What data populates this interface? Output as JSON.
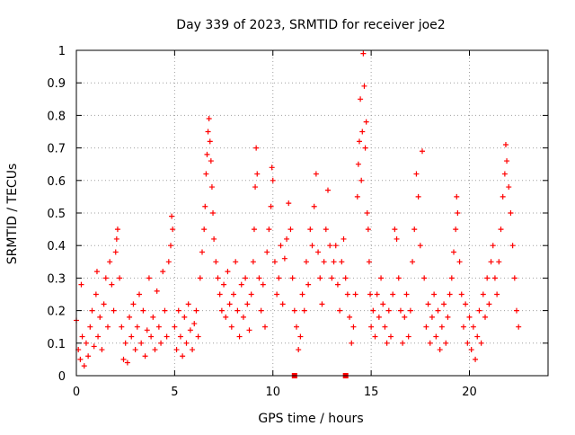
{
  "chart_data": {
    "type": "scatter",
    "title": "Day 339 of 2023, SRMTID for receiver joe2",
    "xlabel": "GPS time / hours",
    "ylabel": "SRMTID / TECUs",
    "xlim": [
      0,
      24
    ],
    "ylim": [
      0,
      1
    ],
    "xticks": [
      0,
      5,
      10,
      15,
      20
    ],
    "yticks": [
      0,
      0.1,
      0.2,
      0.3,
      0.4,
      0.5,
      0.6,
      0.7,
      0.8,
      0.9,
      1
    ],
    "grid": true,
    "marker": "+",
    "color": "#ff0000",
    "series": [
      {
        "name": "SRMTID",
        "values": [
          [
            0.0,
            0.17
          ],
          [
            0.1,
            0.08
          ],
          [
            0.2,
            0.05
          ],
          [
            0.25,
            0.28
          ],
          [
            0.3,
            0.12
          ],
          [
            0.4,
            0.03
          ],
          [
            0.5,
            0.1
          ],
          [
            0.6,
            0.06
          ],
          [
            0.7,
            0.15
          ],
          [
            0.8,
            0.2
          ],
          [
            0.9,
            0.09
          ],
          [
            1.0,
            0.25
          ],
          [
            1.05,
            0.32
          ],
          [
            1.1,
            0.12
          ],
          [
            1.2,
            0.18
          ],
          [
            1.3,
            0.08
          ],
          [
            1.4,
            0.22
          ],
          [
            1.5,
            0.3
          ],
          [
            1.6,
            0.15
          ],
          [
            1.7,
            0.35
          ],
          [
            1.8,
            0.28
          ],
          [
            1.9,
            0.2
          ],
          [
            2.0,
            0.38
          ],
          [
            2.05,
            0.42
          ],
          [
            2.1,
            0.45
          ],
          [
            2.2,
            0.3
          ],
          [
            2.3,
            0.15
          ],
          [
            2.4,
            0.05
          ],
          [
            2.5,
            0.1
          ],
          [
            2.6,
            0.04
          ],
          [
            2.7,
            0.18
          ],
          [
            2.8,
            0.12
          ],
          [
            2.9,
            0.22
          ],
          [
            3.0,
            0.08
          ],
          [
            3.1,
            0.15
          ],
          [
            3.2,
            0.25
          ],
          [
            3.3,
            0.1
          ],
          [
            3.4,
            0.2
          ],
          [
            3.5,
            0.06
          ],
          [
            3.6,
            0.14
          ],
          [
            3.7,
            0.3
          ],
          [
            3.8,
            0.12
          ],
          [
            3.9,
            0.18
          ],
          [
            4.0,
            0.08
          ],
          [
            4.1,
            0.26
          ],
          [
            4.2,
            0.15
          ],
          [
            4.3,
            0.1
          ],
          [
            4.4,
            0.32
          ],
          [
            4.5,
            0.2
          ],
          [
            4.6,
            0.12
          ],
          [
            4.7,
            0.35
          ],
          [
            4.8,
            0.4
          ],
          [
            4.85,
            0.49
          ],
          [
            4.9,
            0.45
          ],
          [
            5.0,
            0.15
          ],
          [
            5.1,
            0.08
          ],
          [
            5.2,
            0.2
          ],
          [
            5.3,
            0.12
          ],
          [
            5.4,
            0.06
          ],
          [
            5.5,
            0.18
          ],
          [
            5.6,
            0.1
          ],
          [
            5.7,
            0.22
          ],
          [
            5.8,
            0.14
          ],
          [
            5.9,
            0.08
          ],
          [
            6.0,
            0.16
          ],
          [
            6.1,
            0.2
          ],
          [
            6.2,
            0.12
          ],
          [
            6.3,
            0.3
          ],
          [
            6.4,
            0.38
          ],
          [
            6.5,
            0.45
          ],
          [
            6.55,
            0.52
          ],
          [
            6.6,
            0.62
          ],
          [
            6.65,
            0.68
          ],
          [
            6.7,
            0.75
          ],
          [
            6.75,
            0.79
          ],
          [
            6.8,
            0.72
          ],
          [
            6.85,
            0.66
          ],
          [
            6.9,
            0.58
          ],
          [
            6.95,
            0.5
          ],
          [
            7.0,
            0.42
          ],
          [
            7.1,
            0.35
          ],
          [
            7.2,
            0.3
          ],
          [
            7.3,
            0.25
          ],
          [
            7.4,
            0.2
          ],
          [
            7.5,
            0.28
          ],
          [
            7.6,
            0.18
          ],
          [
            7.7,
            0.32
          ],
          [
            7.8,
            0.22
          ],
          [
            7.9,
            0.15
          ],
          [
            8.0,
            0.25
          ],
          [
            8.1,
            0.35
          ],
          [
            8.2,
            0.2
          ],
          [
            8.3,
            0.12
          ],
          [
            8.4,
            0.28
          ],
          [
            8.5,
            0.18
          ],
          [
            8.6,
            0.3
          ],
          [
            8.7,
            0.22
          ],
          [
            8.8,
            0.14
          ],
          [
            8.9,
            0.25
          ],
          [
            9.0,
            0.35
          ],
          [
            9.05,
            0.45
          ],
          [
            9.1,
            0.58
          ],
          [
            9.15,
            0.7
          ],
          [
            9.2,
            0.62
          ],
          [
            9.3,
            0.3
          ],
          [
            9.4,
            0.2
          ],
          [
            9.5,
            0.28
          ],
          [
            9.6,
            0.15
          ],
          [
            9.7,
            0.38
          ],
          [
            9.8,
            0.45
          ],
          [
            9.9,
            0.52
          ],
          [
            9.95,
            0.64
          ],
          [
            10.0,
            0.6
          ],
          [
            10.1,
            0.35
          ],
          [
            10.2,
            0.25
          ],
          [
            10.3,
            0.3
          ],
          [
            10.4,
            0.4
          ],
          [
            10.5,
            0.22
          ],
          [
            10.6,
            0.36
          ],
          [
            10.7,
            0.42
          ],
          [
            10.8,
            0.53
          ],
          [
            10.9,
            0.45
          ],
          [
            11.0,
            0.3
          ],
          [
            11.1,
            0.2
          ],
          [
            11.2,
            0.15
          ],
          [
            11.3,
            0.08
          ],
          [
            11.4,
            0.12
          ],
          [
            11.5,
            0.25
          ],
          [
            11.6,
            0.2
          ],
          [
            11.7,
            0.35
          ],
          [
            11.8,
            0.28
          ],
          [
            11.9,
            0.45
          ],
          [
            12.0,
            0.4
          ],
          [
            12.1,
            0.52
          ],
          [
            12.2,
            0.62
          ],
          [
            12.3,
            0.38
          ],
          [
            12.4,
            0.3
          ],
          [
            12.5,
            0.22
          ],
          [
            12.6,
            0.35
          ],
          [
            12.7,
            0.45
          ],
          [
            12.8,
            0.57
          ],
          [
            12.9,
            0.4
          ],
          [
            13.0,
            0.3
          ],
          [
            13.1,
            0.35
          ],
          [
            13.2,
            0.4
          ],
          [
            13.3,
            0.28
          ],
          [
            13.4,
            0.2
          ],
          [
            13.5,
            0.35
          ],
          [
            13.6,
            0.42
          ],
          [
            13.7,
            0.3
          ],
          [
            13.8,
            0.25
          ],
          [
            13.9,
            0.18
          ],
          [
            14.0,
            0.1
          ],
          [
            14.1,
            0.15
          ],
          [
            14.2,
            0.25
          ],
          [
            14.3,
            0.55
          ],
          [
            14.35,
            0.65
          ],
          [
            14.4,
            0.72
          ],
          [
            14.45,
            0.85
          ],
          [
            14.5,
            0.6
          ],
          [
            14.55,
            0.75
          ],
          [
            14.6,
            0.99
          ],
          [
            14.65,
            0.89
          ],
          [
            14.7,
            0.7
          ],
          [
            14.75,
            0.78
          ],
          [
            14.8,
            0.5
          ],
          [
            14.85,
            0.45
          ],
          [
            14.9,
            0.35
          ],
          [
            14.95,
            0.25
          ],
          [
            15.0,
            0.15
          ],
          [
            15.1,
            0.2
          ],
          [
            15.2,
            0.12
          ],
          [
            15.3,
            0.25
          ],
          [
            15.4,
            0.18
          ],
          [
            15.5,
            0.3
          ],
          [
            15.6,
            0.22
          ],
          [
            15.7,
            0.15
          ],
          [
            15.8,
            0.1
          ],
          [
            15.9,
            0.2
          ],
          [
            16.0,
            0.12
          ],
          [
            16.1,
            0.25
          ],
          [
            16.2,
            0.45
          ],
          [
            16.3,
            0.42
          ],
          [
            16.4,
            0.3
          ],
          [
            16.5,
            0.2
          ],
          [
            16.6,
            0.1
          ],
          [
            16.7,
            0.18
          ],
          [
            16.8,
            0.25
          ],
          [
            16.9,
            0.12
          ],
          [
            17.0,
            0.2
          ],
          [
            17.1,
            0.35
          ],
          [
            17.2,
            0.45
          ],
          [
            17.3,
            0.62
          ],
          [
            17.4,
            0.55
          ],
          [
            17.5,
            0.4
          ],
          [
            17.6,
            0.69
          ],
          [
            17.7,
            0.3
          ],
          [
            17.8,
            0.15
          ],
          [
            17.9,
            0.22
          ],
          [
            18.0,
            0.1
          ],
          [
            18.1,
            0.18
          ],
          [
            18.2,
            0.25
          ],
          [
            18.3,
            0.12
          ],
          [
            18.4,
            0.2
          ],
          [
            18.5,
            0.08
          ],
          [
            18.6,
            0.15
          ],
          [
            18.7,
            0.22
          ],
          [
            18.8,
            0.1
          ],
          [
            18.9,
            0.18
          ],
          [
            19.0,
            0.25
          ],
          [
            19.1,
            0.3
          ],
          [
            19.2,
            0.38
          ],
          [
            19.3,
            0.45
          ],
          [
            19.35,
            0.55
          ],
          [
            19.4,
            0.5
          ],
          [
            19.5,
            0.35
          ],
          [
            19.6,
            0.25
          ],
          [
            19.7,
            0.15
          ],
          [
            19.8,
            0.22
          ],
          [
            19.9,
            0.1
          ],
          [
            20.0,
            0.18
          ],
          [
            20.1,
            0.08
          ],
          [
            20.2,
            0.15
          ],
          [
            20.3,
            0.05
          ],
          [
            20.4,
            0.12
          ],
          [
            20.5,
            0.2
          ],
          [
            20.6,
            0.1
          ],
          [
            20.7,
            0.25
          ],
          [
            20.8,
            0.18
          ],
          [
            20.9,
            0.3
          ],
          [
            21.0,
            0.22
          ],
          [
            21.1,
            0.35
          ],
          [
            21.2,
            0.4
          ],
          [
            21.3,
            0.3
          ],
          [
            21.4,
            0.25
          ],
          [
            21.5,
            0.35
          ],
          [
            21.6,
            0.45
          ],
          [
            21.7,
            0.55
          ],
          [
            21.8,
            0.62
          ],
          [
            21.85,
            0.71
          ],
          [
            21.9,
            0.66
          ],
          [
            22.0,
            0.58
          ],
          [
            22.1,
            0.5
          ],
          [
            22.2,
            0.4
          ],
          [
            22.3,
            0.3
          ],
          [
            22.4,
            0.2
          ],
          [
            22.5,
            0.15
          ]
        ]
      }
    ],
    "highlight_markers": [
      {
        "x": 11.1,
        "y": 0.0
      },
      {
        "x": 13.7,
        "y": 0.0
      }
    ]
  }
}
